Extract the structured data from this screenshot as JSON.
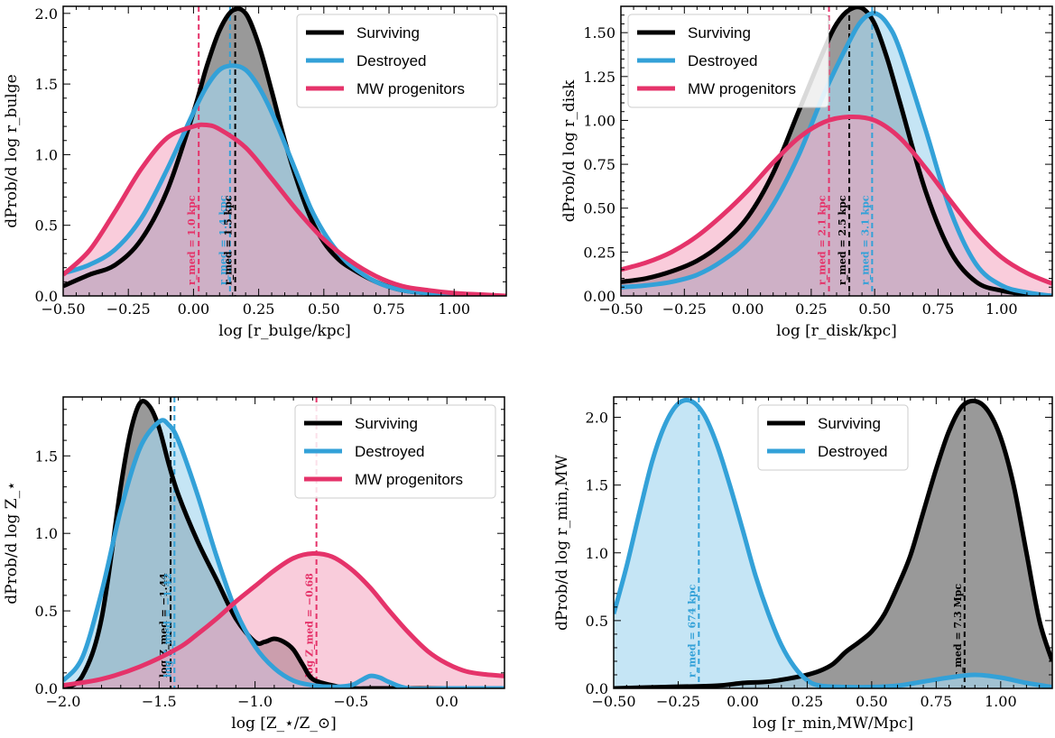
{
  "colors": {
    "surviving": "#000000",
    "surviving_fill": "#7f7f7f",
    "destroyed": "#33a1d8",
    "destroyed_fill": "#a6d7ef",
    "mw": "#e5336a",
    "mw_fill": "#f4a3bd",
    "destroyed_median": "#5b8fd6"
  },
  "chart_data": [
    {
      "type": "area",
      "panel": "top-left",
      "xlabel": "log [r_bulge/kpc]",
      "ylabel": "dProb/d log r_bulge",
      "xlim": [
        -0.5,
        1.2
      ],
      "ylim": [
        0,
        2.05
      ],
      "xticks": [
        -0.5,
        -0.25,
        0.0,
        0.25,
        0.5,
        0.75,
        1.0
      ],
      "xtick_labels": [
        "−0.50",
        "−0.25",
        "0.00",
        "0.25",
        "0.50",
        "0.75",
        "1.00"
      ],
      "yticks": [
        0,
        0.5,
        1.0,
        1.5,
        2.0
      ],
      "ytick_labels": [
        "0.0",
        "0.5",
        "1.0",
        "1.5",
        "2.0"
      ],
      "legend": [
        "Surviving",
        "Destroyed",
        "MW progenitors"
      ],
      "legend_loc": "top-right",
      "series": [
        {
          "name": "Surviving",
          "color_key": "surviving",
          "x": [
            -0.5,
            -0.4,
            -0.3,
            -0.2,
            -0.1,
            0.0,
            0.05,
            0.1,
            0.15,
            0.2,
            0.25,
            0.3,
            0.35,
            0.4,
            0.45,
            0.5,
            0.55,
            0.6,
            0.7,
            0.8,
            0.9,
            1.0,
            1.1,
            1.2
          ],
          "y": [
            0.07,
            0.15,
            0.22,
            0.4,
            0.75,
            1.3,
            1.62,
            1.88,
            2.02,
            2.0,
            1.78,
            1.45,
            1.1,
            0.8,
            0.55,
            0.38,
            0.27,
            0.2,
            0.1,
            0.04,
            0.02,
            0.01,
            0.0,
            0.0
          ]
        },
        {
          "name": "Destroyed",
          "color_key": "destroyed",
          "x": [
            -0.5,
            -0.4,
            -0.3,
            -0.2,
            -0.1,
            0.0,
            0.05,
            0.1,
            0.15,
            0.2,
            0.25,
            0.3,
            0.35,
            0.4,
            0.45,
            0.5,
            0.55,
            0.6,
            0.7,
            0.8,
            0.9,
            1.0,
            1.1,
            1.2
          ],
          "y": [
            0.16,
            0.22,
            0.33,
            0.55,
            0.9,
            1.3,
            1.48,
            1.6,
            1.63,
            1.6,
            1.48,
            1.3,
            1.08,
            0.85,
            0.62,
            0.45,
            0.32,
            0.22,
            0.1,
            0.04,
            0.02,
            0.01,
            0.0,
            0.0
          ]
        },
        {
          "name": "MW progenitors",
          "color_key": "mw",
          "x": [
            -0.5,
            -0.4,
            -0.3,
            -0.2,
            -0.1,
            0.0,
            0.05,
            0.1,
            0.2,
            0.3,
            0.4,
            0.5,
            0.6,
            0.7,
            0.8,
            0.9,
            1.0,
            1.1,
            1.2
          ],
          "y": [
            0.15,
            0.32,
            0.6,
            0.9,
            1.12,
            1.2,
            1.21,
            1.18,
            1.05,
            0.83,
            0.6,
            0.4,
            0.25,
            0.14,
            0.07,
            0.04,
            0.02,
            0.01,
            0.0
          ]
        }
      ],
      "medians": [
        {
          "series": "MW progenitors",
          "color_key": "mw",
          "x": 0.02,
          "label": "r_med = 1.0 kpc"
        },
        {
          "series": "Destroyed",
          "color_key": "destroyed",
          "x": 0.14,
          "label": "r_med = 1.4 kpc"
        },
        {
          "series": "Surviving",
          "color_key": "surviving",
          "x": 0.16,
          "label": "r_med = 1.5 kpc"
        }
      ]
    },
    {
      "type": "area",
      "panel": "top-right",
      "xlabel": "log [r_disk/kpc]",
      "ylabel": "dProb/d log r_disk",
      "xlim": [
        -0.5,
        1.2
      ],
      "ylim": [
        0,
        1.65
      ],
      "xticks": [
        -0.5,
        -0.25,
        0.0,
        0.25,
        0.5,
        0.75,
        1.0
      ],
      "xtick_labels": [
        "−0.50",
        "−0.25",
        "0.00",
        "0.25",
        "0.50",
        "0.75",
        "1.00"
      ],
      "yticks": [
        0,
        0.25,
        0.5,
        0.75,
        1.0,
        1.25,
        1.5
      ],
      "ytick_labels": [
        "0.00",
        "0.25",
        "0.50",
        "0.75",
        "1.00",
        "1.25",
        "1.50"
      ],
      "legend": [
        "Surviving",
        "Destroyed",
        "MW progenitors"
      ],
      "legend_loc": "top-left",
      "series": [
        {
          "name": "Surviving",
          "color_key": "surviving",
          "x": [
            -0.5,
            -0.4,
            -0.3,
            -0.2,
            -0.1,
            0.0,
            0.1,
            0.2,
            0.3,
            0.35,
            0.4,
            0.45,
            0.5,
            0.55,
            0.6,
            0.7,
            0.8,
            0.9,
            1.0,
            1.1,
            1.2
          ],
          "y": [
            0.08,
            0.1,
            0.14,
            0.2,
            0.3,
            0.45,
            0.7,
            1.05,
            1.4,
            1.55,
            1.63,
            1.64,
            1.55,
            1.35,
            1.1,
            0.6,
            0.25,
            0.08,
            0.03,
            0.01,
            0.0
          ]
        },
        {
          "name": "Destroyed",
          "color_key": "destroyed",
          "x": [
            -0.5,
            -0.4,
            -0.3,
            -0.2,
            -0.1,
            0.0,
            0.1,
            0.2,
            0.3,
            0.4,
            0.45,
            0.5,
            0.55,
            0.6,
            0.7,
            0.8,
            0.9,
            1.0,
            1.1,
            1.2
          ],
          "y": [
            0.05,
            0.06,
            0.08,
            0.12,
            0.2,
            0.32,
            0.52,
            0.8,
            1.15,
            1.45,
            1.57,
            1.61,
            1.55,
            1.4,
            0.95,
            0.48,
            0.18,
            0.06,
            0.02,
            0.0
          ]
        },
        {
          "name": "MW progenitors",
          "color_key": "mw",
          "x": [
            -0.5,
            -0.4,
            -0.3,
            -0.2,
            -0.1,
            0.0,
            0.1,
            0.2,
            0.3,
            0.4,
            0.5,
            0.6,
            0.7,
            0.8,
            0.9,
            1.0,
            1.1,
            1.2
          ],
          "y": [
            0.15,
            0.19,
            0.25,
            0.34,
            0.46,
            0.6,
            0.76,
            0.9,
            0.99,
            1.02,
            1.0,
            0.9,
            0.73,
            0.54,
            0.36,
            0.22,
            0.13,
            0.07
          ]
        }
      ],
      "medians": [
        {
          "series": "MW progenitors",
          "color_key": "mw",
          "x": 0.32,
          "label": "r_med = 2.1 kpc"
        },
        {
          "series": "Surviving",
          "color_key": "surviving",
          "x": 0.4,
          "label": "r_med = 2.5 kpc"
        },
        {
          "series": "Destroyed",
          "color_key": "destroyed",
          "x": 0.49,
          "label": "r_med = 3.1 kpc"
        }
      ]
    },
    {
      "type": "area",
      "panel": "bottom-left",
      "xlabel": "log [Z_⋆/Z_⊙]",
      "ylabel": "dProb/d log Z_⋆",
      "xlim": [
        -2.0,
        0.3
      ],
      "ylim": [
        0,
        1.88
      ],
      "xticks": [
        -2.0,
        -1.5,
        -1.0,
        -0.5,
        0.0
      ],
      "xtick_labels": [
        "−2.0",
        "−1.5",
        "−1.0",
        "−0.5",
        "0.0"
      ],
      "yticks": [
        0,
        0.5,
        1.0,
        1.5
      ],
      "ytick_labels": [
        "0.0",
        "0.5",
        "1.0",
        "1.5"
      ],
      "legend": [
        "Surviving",
        "Destroyed",
        "MW progenitors"
      ],
      "legend_loc": "top-right",
      "series": [
        {
          "name": "Surviving",
          "color_key": "surviving",
          "x": [
            -2.0,
            -1.9,
            -1.8,
            -1.7,
            -1.65,
            -1.6,
            -1.55,
            -1.5,
            -1.45,
            -1.4,
            -1.3,
            -1.2,
            -1.1,
            -1.0,
            -0.95,
            -0.9,
            -0.85,
            -0.8,
            -0.75,
            -0.7,
            -0.6,
            -0.5,
            -0.4,
            -0.3,
            0.0,
            0.3
          ],
          "y": [
            0.0,
            0.08,
            0.45,
            1.3,
            1.65,
            1.84,
            1.82,
            1.68,
            1.45,
            1.25,
            0.95,
            0.7,
            0.45,
            0.3,
            0.3,
            0.32,
            0.3,
            0.25,
            0.15,
            0.06,
            0.02,
            0.0,
            0.0,
            0.0,
            0.0,
            0.0
          ]
        },
        {
          "name": "Destroyed",
          "color_key": "destroyed",
          "x": [
            -2.0,
            -1.9,
            -1.8,
            -1.7,
            -1.6,
            -1.5,
            -1.45,
            -1.4,
            -1.3,
            -1.2,
            -1.1,
            -1.0,
            -0.9,
            -0.8,
            -0.7,
            -0.6,
            -0.5,
            -0.45,
            -0.4,
            -0.35,
            -0.3,
            -0.2,
            0.0,
            0.3
          ],
          "y": [
            0.05,
            0.2,
            0.62,
            1.15,
            1.55,
            1.72,
            1.7,
            1.6,
            1.25,
            0.85,
            0.5,
            0.27,
            0.13,
            0.05,
            0.02,
            0.01,
            0.02,
            0.05,
            0.08,
            0.07,
            0.04,
            0.0,
            0.0,
            0.0
          ]
        },
        {
          "name": "MW progenitors",
          "color_key": "mw",
          "x": [
            -2.0,
            -1.8,
            -1.6,
            -1.4,
            -1.3,
            -1.2,
            -1.1,
            -1.0,
            -0.9,
            -0.8,
            -0.7,
            -0.6,
            -0.5,
            -0.4,
            -0.3,
            -0.2,
            -0.1,
            0.0,
            0.1,
            0.2,
            0.3
          ],
          "y": [
            0.02,
            0.06,
            0.14,
            0.26,
            0.35,
            0.45,
            0.56,
            0.66,
            0.76,
            0.84,
            0.87,
            0.85,
            0.77,
            0.65,
            0.5,
            0.36,
            0.24,
            0.16,
            0.11,
            0.09,
            0.08
          ]
        }
      ],
      "medians": [
        {
          "series": "Surviving",
          "color_key": "surviving",
          "x": -1.44,
          "label": "log Z_med = −1.44"
        },
        {
          "series": "Destroyed",
          "color_key": "destroyed",
          "x": -1.42,
          "label": "log Z_med = −1.42"
        },
        {
          "series": "MW progenitors",
          "color_key": "mw",
          "x": -0.68,
          "label": "log Z_med = −0.68"
        }
      ]
    },
    {
      "type": "area",
      "panel": "bottom-right",
      "xlabel": "log [r_min,MW/Mpc]",
      "ylabel": "dProb/d log r_min,MW",
      "xlim": [
        -0.5,
        1.2
      ],
      "ylim": [
        0,
        2.15
      ],
      "xticks": [
        -0.5,
        -0.25,
        0.0,
        0.25,
        0.5,
        0.75,
        1.0
      ],
      "xtick_labels": [
        "−0.50",
        "−0.25",
        "0.00",
        "0.25",
        "0.50",
        "0.75",
        "1.00"
      ],
      "yticks": [
        0,
        0.5,
        1.0,
        1.5,
        2.0
      ],
      "ytick_labels": [
        "0.0",
        "0.5",
        "1.0",
        "1.5",
        "2.0"
      ],
      "legend": [
        "Surviving",
        "Destroyed"
      ],
      "legend_loc": "top-center",
      "series": [
        {
          "name": "Surviving",
          "color_key": "surviving",
          "x": [
            -0.5,
            -0.3,
            -0.1,
            0.0,
            0.1,
            0.2,
            0.25,
            0.3,
            0.35,
            0.4,
            0.45,
            0.5,
            0.55,
            0.6,
            0.65,
            0.7,
            0.75,
            0.8,
            0.85,
            0.9,
            0.95,
            1.0,
            1.05,
            1.1,
            1.15,
            1.2
          ],
          "y": [
            0.0,
            0.01,
            0.02,
            0.04,
            0.05,
            0.08,
            0.1,
            0.13,
            0.18,
            0.27,
            0.34,
            0.42,
            0.55,
            0.75,
            0.98,
            1.3,
            1.62,
            1.9,
            2.08,
            2.12,
            2.05,
            1.85,
            1.5,
            1.0,
            0.5,
            0.2
          ]
        },
        {
          "name": "Destroyed",
          "color_key": "destroyed",
          "x": [
            -0.5,
            -0.45,
            -0.4,
            -0.35,
            -0.3,
            -0.25,
            -0.2,
            -0.15,
            -0.1,
            -0.05,
            0.0,
            0.05,
            0.1,
            0.15,
            0.2,
            0.25,
            0.3,
            0.4,
            0.5,
            0.6,
            0.7,
            0.8,
            0.9,
            1.0,
            1.1,
            1.2
          ],
          "y": [
            0.55,
            0.9,
            1.3,
            1.68,
            1.95,
            2.1,
            2.12,
            2.02,
            1.8,
            1.5,
            1.17,
            0.83,
            0.55,
            0.32,
            0.16,
            0.06,
            0.02,
            0.01,
            0.01,
            0.02,
            0.05,
            0.08,
            0.1,
            0.08,
            0.04,
            0.01
          ]
        }
      ],
      "medians": [
        {
          "series": "Destroyed",
          "color_key": "destroyed",
          "x": -0.17,
          "label": "r_med = 674 kpc"
        },
        {
          "series": "Surviving",
          "color_key": "surviving",
          "x": 0.86,
          "label": "r_med = 7.3 Mpc"
        }
      ]
    }
  ]
}
